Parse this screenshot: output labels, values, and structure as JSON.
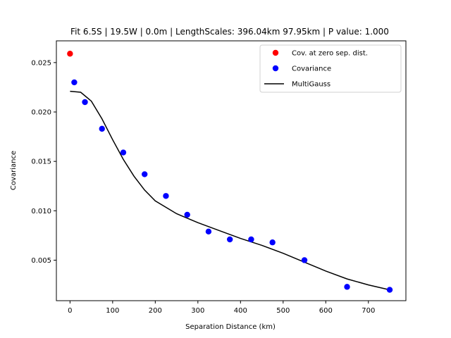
{
  "chart_data": {
    "type": "scatter",
    "title": "Fit 6.5S | 19.5W | 0.0m | LengthScales: 396.04km 97.95km | P value: 1.000",
    "xlabel": "Separation Distance (km)",
    "ylabel": "Covariance",
    "xlim": [
      -32,
      788
    ],
    "ylim": [
      0.0009,
      0.0272
    ],
    "xticks": [
      0,
      100,
      200,
      300,
      400,
      500,
      600,
      700
    ],
    "xtick_labels": [
      "0",
      "100",
      "200",
      "300",
      "400",
      "500",
      "600",
      "700"
    ],
    "yticks": [
      0.005,
      0.01,
      0.015,
      0.02,
      0.025
    ],
    "ytick_labels": [
      "0.005",
      "0.010",
      "0.015",
      "0.020",
      "0.025"
    ],
    "legend_position": "top-right",
    "grid": false,
    "series": [
      {
        "name": "Cov. at zero sep. dist.",
        "kind": "points",
        "color": "#ff0000",
        "x": [
          0
        ],
        "y": [
          0.0259
        ]
      },
      {
        "name": "Covariance",
        "kind": "points",
        "color": "#0000ff",
        "x": [
          10,
          35,
          75,
          125,
          175,
          225,
          275,
          325,
          375,
          425,
          475,
          550,
          650,
          750
        ],
        "y": [
          0.023,
          0.021,
          0.0183,
          0.0159,
          0.0137,
          0.0115,
          0.0096,
          0.0079,
          0.0071,
          0.0071,
          0.0068,
          0.005,
          0.0023,
          0.002
        ]
      },
      {
        "name": "MultiGauss",
        "kind": "line",
        "color": "#000000",
        "x": [
          0,
          25,
          50,
          75,
          100,
          125,
          150,
          175,
          200,
          250,
          300,
          350,
          400,
          450,
          500,
          550,
          600,
          650,
          700,
          750
        ],
        "y": [
          0.0221,
          0.022,
          0.0211,
          0.0193,
          0.0172,
          0.0152,
          0.0135,
          0.0121,
          0.011,
          0.0097,
          0.0088,
          0.008,
          0.0072,
          0.0065,
          0.0057,
          0.0048,
          0.0039,
          0.0031,
          0.0025,
          0.002
        ]
      }
    ]
  }
}
